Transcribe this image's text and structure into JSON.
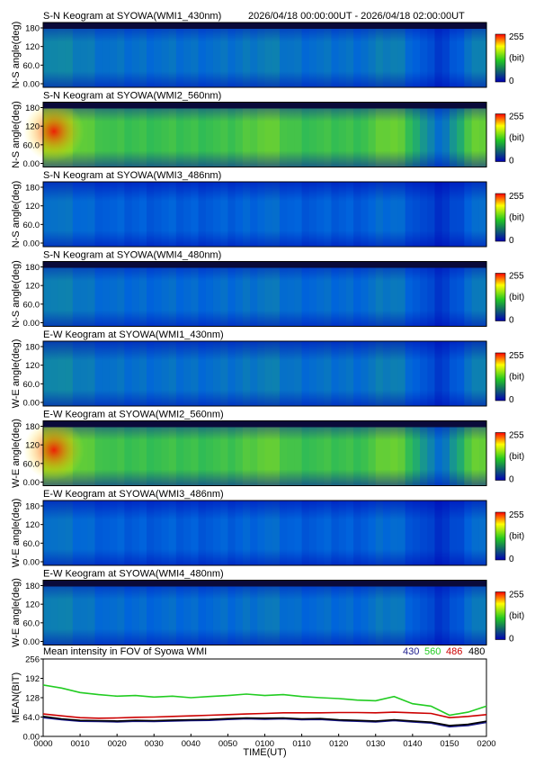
{
  "header": {
    "time_range": "2026/04/18 00:00:00UT - 2026/04/18 02:00:00UT"
  },
  "colors": {
    "low": "#0000b4",
    "mid": "#22c822",
    "high": "#ffff00",
    "max": "#ff0000",
    "band": "#0a0a3a",
    "series_430": "#1a1a8c",
    "series_560": "#22cc22",
    "series_486": "#cc0000",
    "series_480": "#000000"
  },
  "colorbar": {
    "max_label": "255",
    "unit_label": "(bit)",
    "min_label": "0"
  },
  "keogram_y_ticks": [
    "180",
    "120",
    "60.0",
    "0.00"
  ],
  "panels": [
    {
      "title": "S-N Keogram at SYOWA(WMI1_430nm)",
      "ylabel": "N-S angle(deg)",
      "intensity": 0.3,
      "band_top": true
    },
    {
      "title": "S-N Keogram at SYOWA(WMI2_560nm)",
      "ylabel": "N-S angle(deg)",
      "intensity": 0.62,
      "band_top": true
    },
    {
      "title": "S-N Keogram at SYOWA(WMI3_486nm)",
      "ylabel": "N-S angle(deg)",
      "intensity": 0.24,
      "band_top": false
    },
    {
      "title": "S-N Keogram at SYOWA(WMI4_480nm)",
      "ylabel": "N-S angle(deg)",
      "intensity": 0.28,
      "band_top": true
    },
    {
      "title": "E-W Keogram at SYOWA(WMI1_430nm)",
      "ylabel": "W-E angle(deg)",
      "intensity": 0.3,
      "band_top": false
    },
    {
      "title": "E-W Keogram at SYOWA(WMI2_560nm)",
      "ylabel": "W-E angle(deg)",
      "intensity": 0.62,
      "band_top": true
    },
    {
      "title": "E-W Keogram at SYOWA(WMI3_486nm)",
      "ylabel": "W-E angle(deg)",
      "intensity": 0.24,
      "band_top": false
    },
    {
      "title": "E-W Keogram at SYOWA(WMI4_480nm)",
      "ylabel": "W-E angle(deg)",
      "intensity": 0.28,
      "band_top": true
    }
  ],
  "chart_data": {
    "type": "line",
    "title": "Mean intensity in FOV of Syowa WMI",
    "xlabel": "TIME(UT)",
    "ylabel": "MEAN(BIT)",
    "ylim": [
      0,
      256
    ],
    "yticks": [
      "256",
      "192",
      "128",
      "64.0",
      "0.00"
    ],
    "x_tick_labels": [
      "0000",
      "0010",
      "0020",
      "0030",
      "0040",
      "0050",
      "0100",
      "0110",
      "0120",
      "0130",
      "0140",
      "0150",
      "0200"
    ],
    "x_minutes": [
      0,
      5,
      10,
      15,
      20,
      25,
      30,
      35,
      40,
      45,
      50,
      55,
      60,
      65,
      70,
      75,
      80,
      85,
      90,
      95,
      100,
      105,
      110,
      115,
      120
    ],
    "legend": [
      "430",
      "560",
      "486",
      "480"
    ],
    "series": [
      {
        "name": "560",
        "values": [
          170,
          160,
          145,
          138,
          133,
          135,
          130,
          133,
          128,
          132,
          135,
          140,
          135,
          138,
          132,
          128,
          125,
          120,
          118,
          132,
          108,
          100,
          70,
          80,
          100
        ]
      },
      {
        "name": "486",
        "values": [
          74,
          68,
          62,
          60,
          61,
          63,
          64,
          66,
          68,
          70,
          72,
          74,
          76,
          78,
          78,
          78,
          79,
          79,
          78,
          80,
          78,
          76,
          62,
          66,
          72
        ]
      },
      {
        "name": "430",
        "values": [
          62,
          55,
          50,
          49,
          48,
          50,
          49,
          51,
          52,
          53,
          56,
          58,
          57,
          58,
          55,
          56,
          52,
          50,
          48,
          52,
          48,
          44,
          32,
          36,
          46
        ]
      },
      {
        "name": "480",
        "values": [
          66,
          58,
          53,
          52,
          51,
          53,
          52,
          54,
          55,
          56,
          59,
          61,
          60,
          61,
          58,
          59,
          55,
          53,
          51,
          55,
          51,
          47,
          36,
          40,
          50
        ]
      }
    ]
  }
}
